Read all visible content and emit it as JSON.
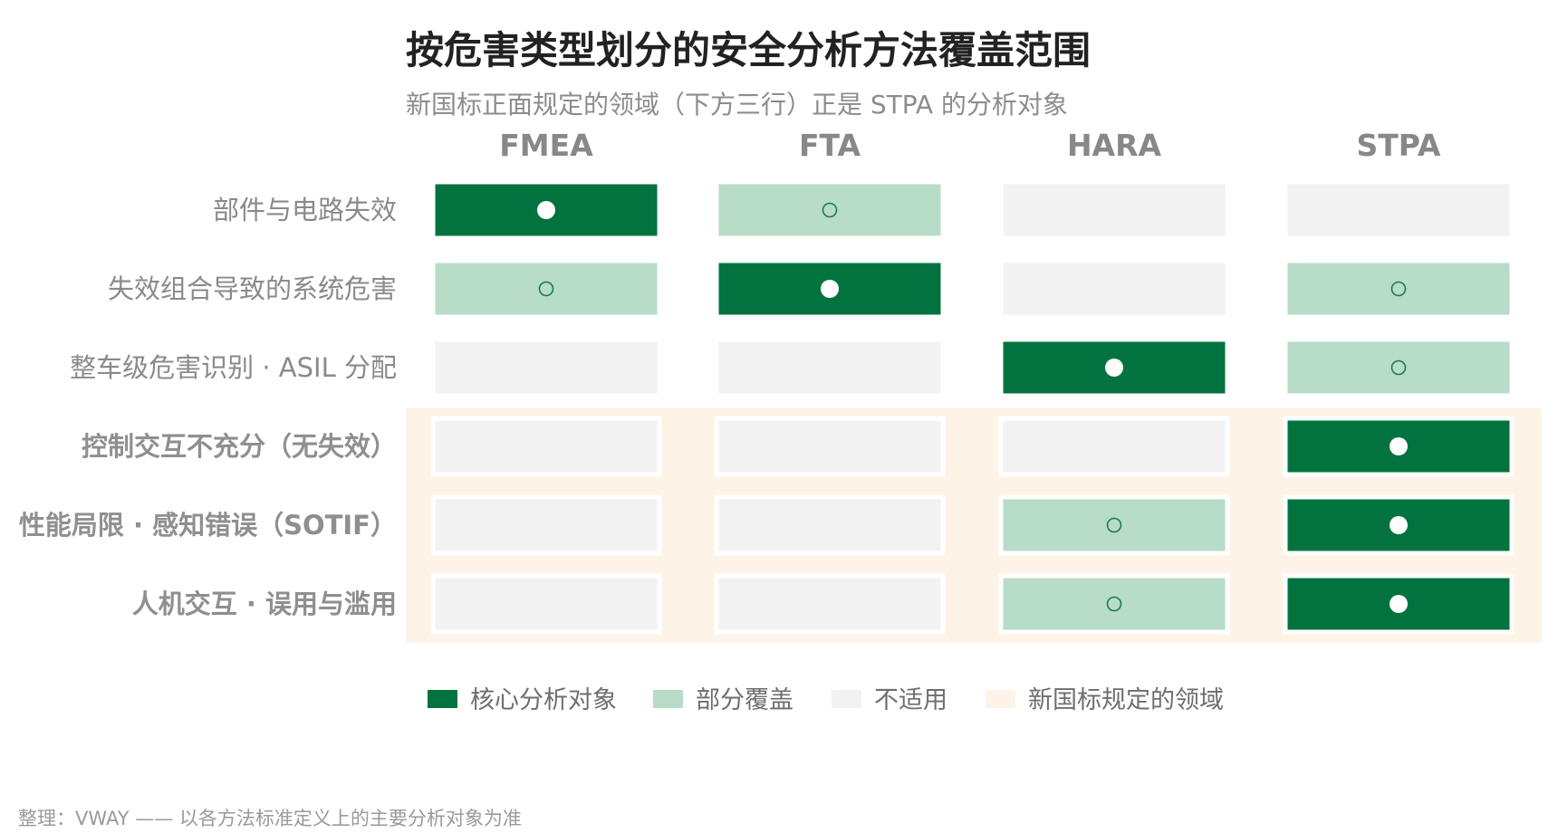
{
  "title": "按危害类型划分的安全分析方法覆盖范围",
  "subtitle": "新国标正面规定的领域（下方三行）正是 STPA 的分析对象",
  "footer": "整理：VWAY —— 以各方法标准定义上的主要分析对象为准",
  "colors": {
    "core": "#02733e",
    "partial": "#b7dcc7",
    "na": "#f1f2f1",
    "region": "#fdf3e7",
    "partial_dot": "#1e7a4a",
    "core_dot": "#ffffff"
  },
  "chart_data": {
    "type": "heatmap",
    "title": "按危害类型划分的安全分析方法覆盖范围",
    "subtitle": "新国标正面规定的领域（下方三行）正是 STPA 的分析对象",
    "columns": [
      "FMEA",
      "FTA",
      "HARA",
      "STPA"
    ],
    "rows": [
      "部件与电路失效",
      "失效组合导致的系统危害",
      "整车级危害识别 · ASIL 分配",
      "控制交互不充分（无失效）",
      "性能局限 · 感知错误（SOTIF）",
      "人机交互 · 误用与滥用"
    ],
    "highlighted_rows": [
      3,
      4,
      5
    ],
    "levels": [
      "core",
      "partial",
      "na"
    ],
    "values": [
      [
        "core",
        "partial",
        "na",
        "na"
      ],
      [
        "partial",
        "core",
        "na",
        "partial"
      ],
      [
        "na",
        "na",
        "core",
        "partial"
      ],
      [
        "na",
        "na",
        "na",
        "core"
      ],
      [
        "na",
        "na",
        "partial",
        "core"
      ],
      [
        "na",
        "na",
        "partial",
        "core"
      ]
    ],
    "legend": [
      {
        "key": "core",
        "label": "核心分析对象"
      },
      {
        "key": "partial",
        "label": "部分覆盖"
      },
      {
        "key": "na",
        "label": "不适用"
      },
      {
        "key": "region",
        "label": "新国标规定的领域"
      }
    ]
  }
}
